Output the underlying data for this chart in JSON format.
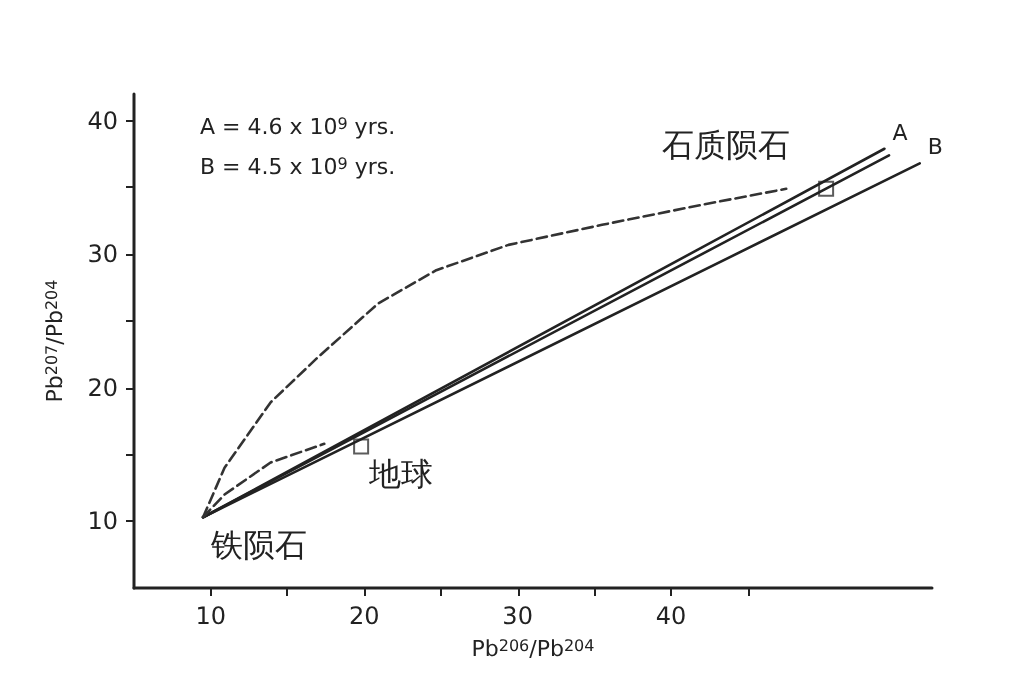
{
  "chart_data": {
    "type": "line",
    "xlabel": "Pb$^{206}$/Pb$^{204}$",
    "ylabel": "Pb$^{207}$/Pb$^{204}$",
    "xlim": [
      5,
      57
    ],
    "ylim": [
      5,
      42
    ],
    "xticks": [
      10,
      {
        "value": 15,
        "label": null
      },
      20,
      {
        "value": 25,
        "label": null
      },
      30,
      {
        "value": 35,
        "label": null
      },
      40,
      {
        "value": 45,
        "label": null
      }
    ],
    "yticks": [
      10,
      {
        "value": 15,
        "label": null
      },
      20,
      {
        "value": 25,
        "label": null
      },
      30,
      {
        "value": 35,
        "label": null
      },
      40
    ],
    "grid": false,
    "legend": false,
    "line_style": "solid",
    "marker": "none",
    "series": [
      {
        "name": "A",
        "color": "#222222",
        "x": [
          9.5,
          53.9
        ],
        "values": [
          10.3,
          37.9
        ]
      },
      {
        "color": "#222222",
        "x": [
          9.5,
          54.2
        ],
        "values": [
          10.3,
          37.4
        ]
      },
      {
        "name": "B",
        "color": "#222222",
        "x": [
          9.5,
          56.2
        ],
        "values": [
          10.3,
          36.8
        ]
      },
      {
        "color": "#333333",
        "line_style": "dashed",
        "x": [
          9.5,
          10.9,
          13.9,
          17,
          20.9,
          24.7,
          29.4,
          35.5,
          42,
          47.5
        ],
        "values": [
          10.3,
          14,
          18.9,
          22.3,
          26.3,
          28.8,
          30.7,
          32.2,
          33.7,
          34.9
        ]
      },
      {
        "color": "#333333",
        "line_style": "dashed",
        "x": [
          9.5,
          10.9,
          13.9,
          17.4
        ],
        "values": [
          10.3,
          12,
          14.4,
          15.8
        ]
      },
      {
        "type": "scatter",
        "marker": "square",
        "color": "#333333",
        "x": [
          19.8,
          50.1
        ],
        "values": [
          15.6,
          34.9
        ]
      }
    ],
    "annotations": [
      "A = 4.6 x 10$^{9}$ yrs.",
      "B = 4.5 x 10$^{9}$ yrs.",
      {
        "text": "铁陨石",
        "x": 9.5,
        "y": 10.3
      },
      {
        "text": "地球",
        "x": 19.8,
        "y": 15.6
      },
      {
        "text": "石质陨石",
        "x": 50.1,
        "y": 34.9
      }
    ]
  }
}
